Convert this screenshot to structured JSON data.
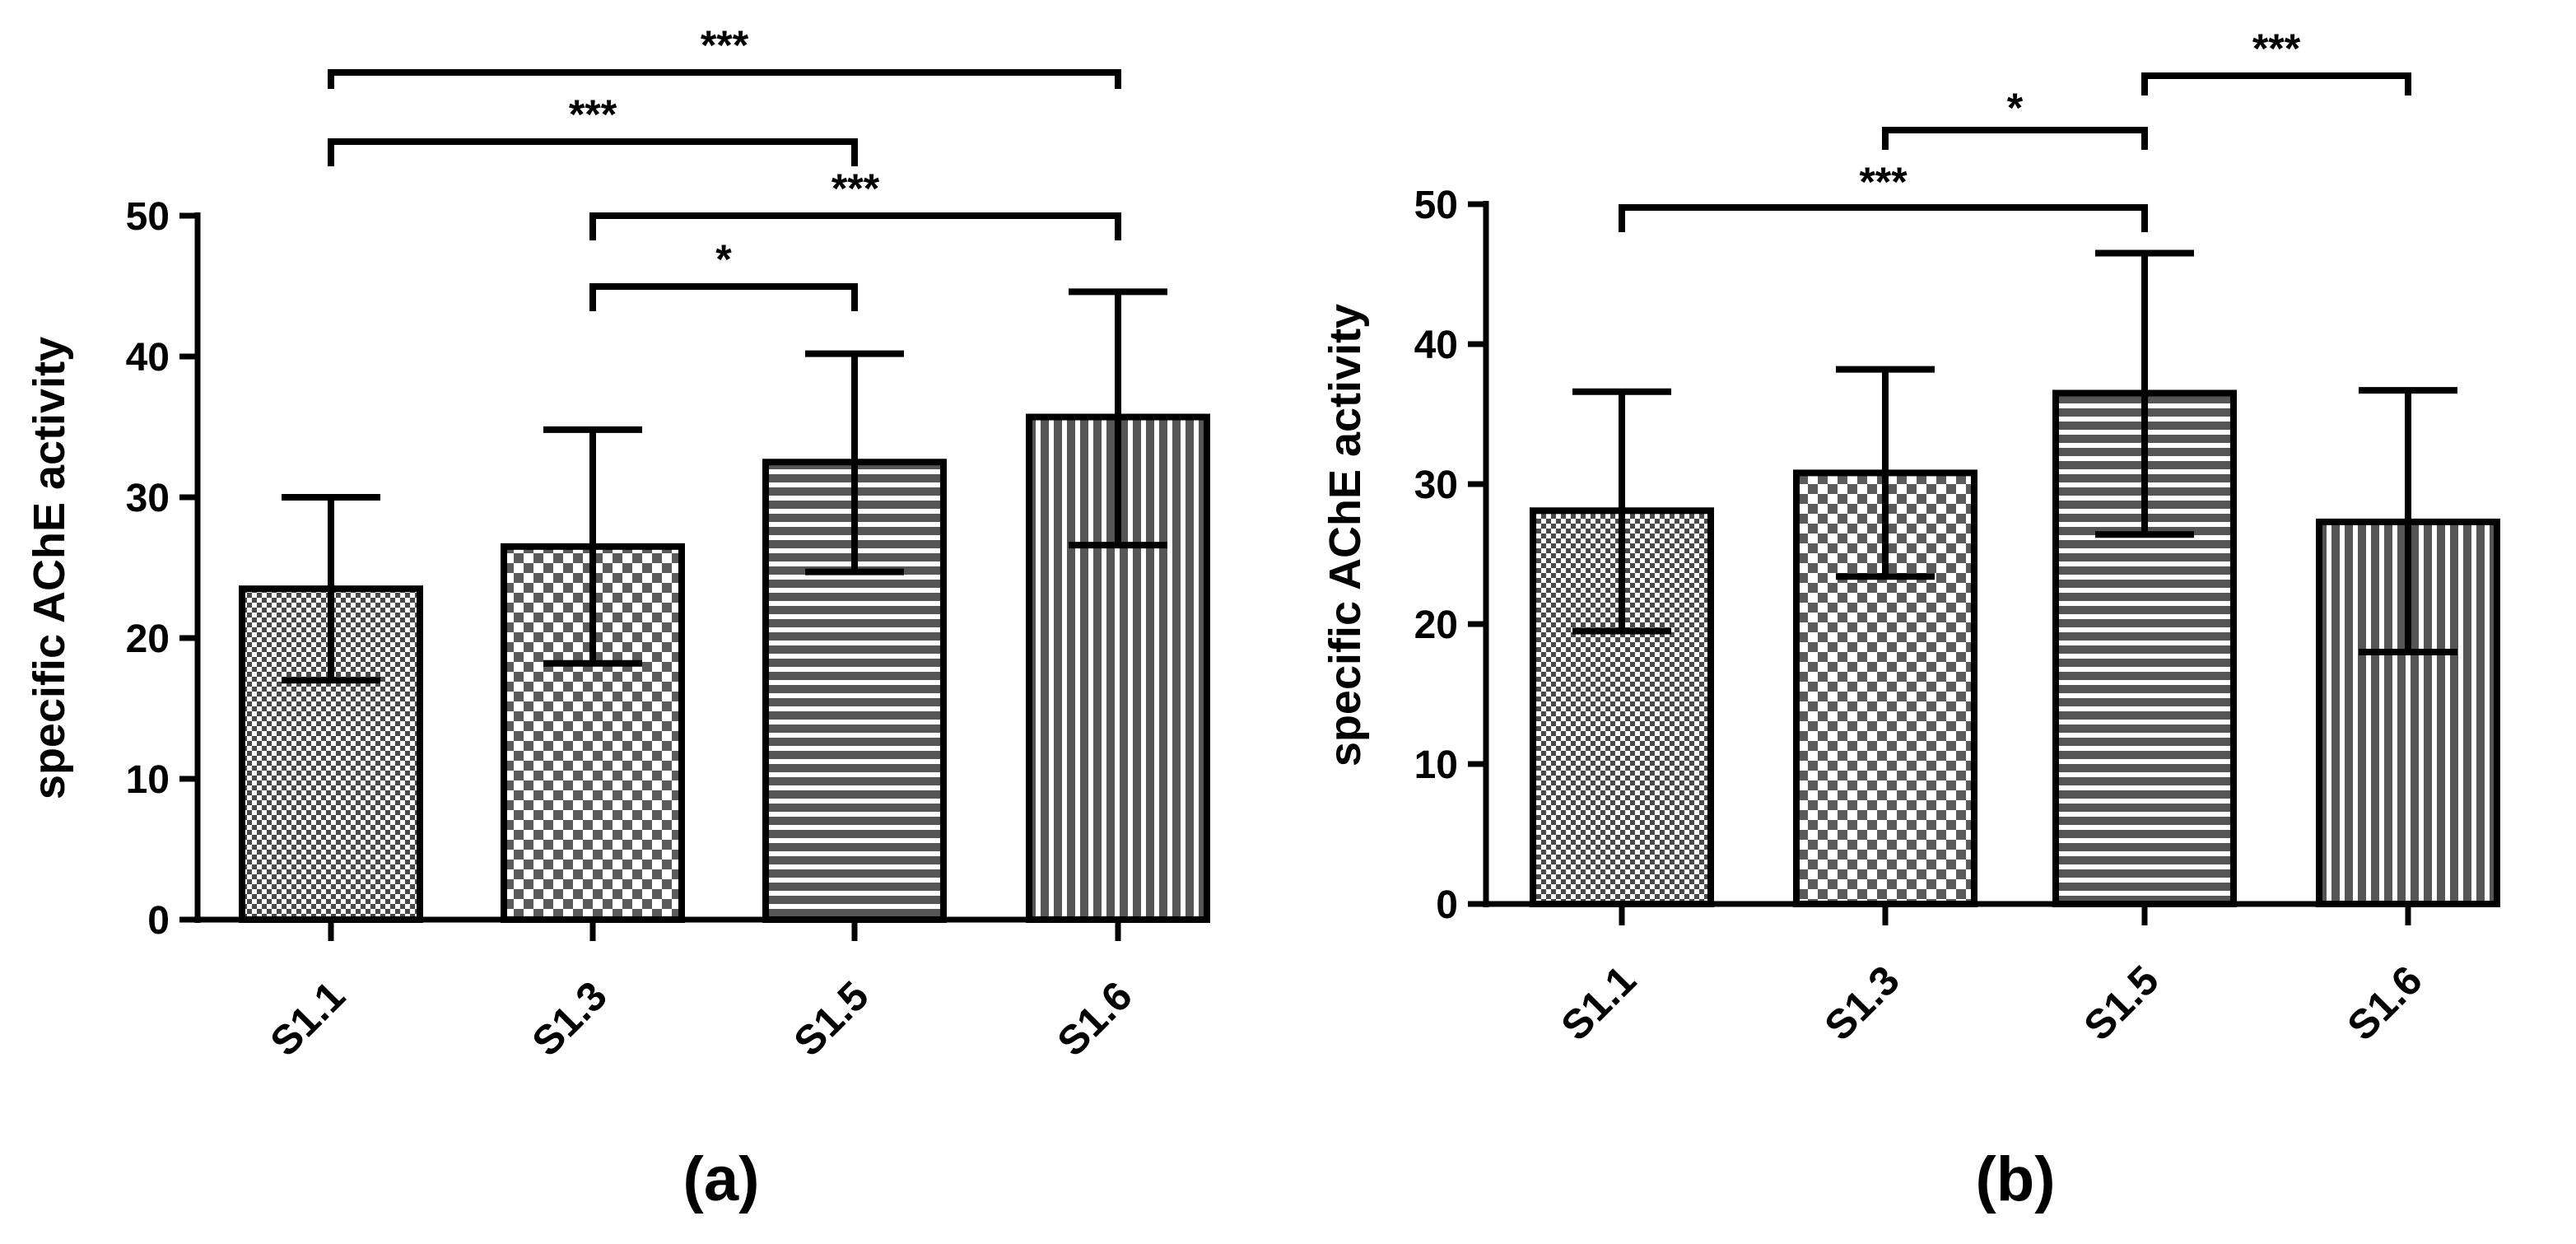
{
  "chart_data": [
    {
      "type": "bar",
      "panel_label": "(a)",
      "title": "",
      "xlabel": "",
      "ylabel": "specific AChE activity",
      "ylim": [
        0,
        50
      ],
      "yticks": [
        "0",
        "10",
        "20",
        "30",
        "40",
        "50"
      ],
      "categories": [
        "S1.1",
        "S1.3",
        "S1.5",
        "S1.6"
      ],
      "values": [
        23.5,
        26.5,
        32.5,
        35.7
      ],
      "error_upper": [
        30,
        34.8,
        40.2,
        44.6
      ],
      "error_lower": [
        17,
        18.2,
        24.7,
        26.6
      ],
      "patterns": [
        "fine-checker",
        "checker",
        "horizontal-lines",
        "vertical-lines"
      ],
      "significance": [
        {
          "from": "S1.1",
          "to": "S1.6",
          "label": "***"
        },
        {
          "from": "S1.1",
          "to": "S1.5",
          "label": "***"
        },
        {
          "from": "S1.3",
          "to": "S1.6",
          "label": "***"
        },
        {
          "from": "S1.3",
          "to": "S1.5",
          "label": "*"
        }
      ]
    },
    {
      "type": "bar",
      "panel_label": "(b)",
      "title": "",
      "xlabel": "",
      "ylabel": "specific AChE activity",
      "ylim": [
        0,
        50
      ],
      "yticks": [
        "0",
        "10",
        "20",
        "30",
        "40",
        "50"
      ],
      "categories": [
        "S1.1",
        "S1.3",
        "S1.5",
        "S1.6"
      ],
      "values": [
        28.1,
        30.8,
        36.5,
        27.3
      ],
      "error_upper": [
        36.6,
        38.2,
        46.5,
        36.7
      ],
      "error_lower": [
        19.5,
        23.4,
        26.4,
        18
      ],
      "patterns": [
        "fine-checker",
        "checker",
        "horizontal-lines",
        "vertical-lines"
      ],
      "significance": [
        {
          "from": "S1.5",
          "to": "S1.6",
          "label": "***"
        },
        {
          "from": "S1.3",
          "to": "S1.5",
          "label": "*"
        },
        {
          "from": "S1.1",
          "to": "S1.5",
          "label": "***"
        }
      ]
    }
  ]
}
